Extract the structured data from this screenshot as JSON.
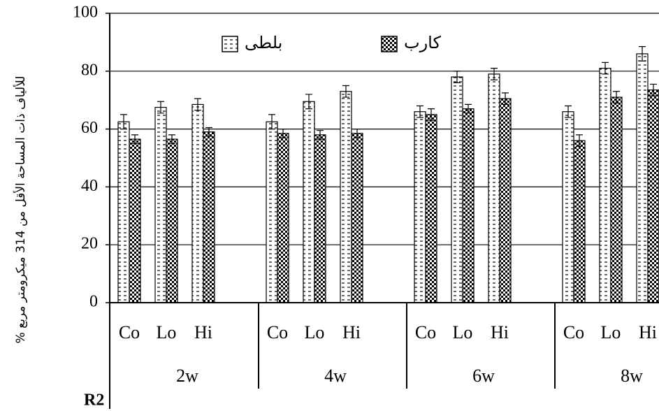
{
  "chart_data": {
    "type": "bar",
    "ylabel": "% للألياف ذات المساحة الأقل من 314 ميكرومتر مربع",
    "categories": [
      "Co",
      "Lo",
      "Hi",
      "Co",
      "Lo",
      "Hi",
      "Co",
      "Lo",
      "Hi",
      "Co",
      "Lo",
      "Hi"
    ],
    "groups": [
      "2w",
      "4w",
      "6w",
      "8w"
    ],
    "series": [
      {
        "name": "بلطى",
        "pattern": "dotted",
        "values": [
          62.5,
          67.5,
          68.5,
          62.5,
          69.5,
          73,
          66,
          78,
          79,
          66,
          81,
          86
        ],
        "errors": [
          2.5,
          2,
          2,
          2.5,
          2.5,
          2,
          2,
          2,
          2,
          2,
          2,
          2.5
        ]
      },
      {
        "name": "كارب",
        "pattern": "checkered",
        "values": [
          56.5,
          56.5,
          59,
          58.5,
          58,
          58.5,
          65,
          67,
          70.5,
          56,
          71,
          73.5
        ],
        "errors": [
          1.5,
          1.5,
          1.5,
          1.5,
          1.5,
          1.5,
          2,
          1.5,
          2,
          2,
          2,
          2
        ]
      }
    ],
    "ylim": [
      0,
      100
    ],
    "yticks": [
      0,
      20,
      40,
      60,
      80,
      100
    ],
    "grid": true,
    "footnote": "R2"
  }
}
